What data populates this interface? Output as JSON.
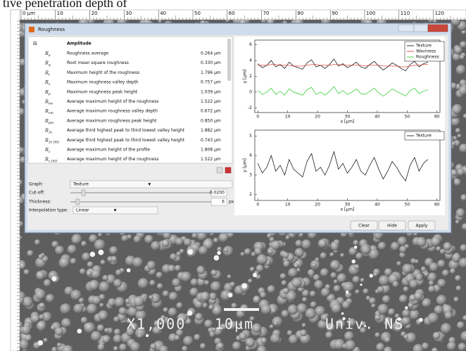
{
  "document_text": "tive penetration depth of",
  "ruler": {
    "labels": [
      "0 µm",
      "10",
      "20",
      "30",
      "40",
      "50",
      "60",
      "70",
      "80",
      "90",
      "100",
      "110",
      "120"
    ]
  },
  "window": {
    "title": "Roughness",
    "table": {
      "section": "Amplitude",
      "rows": [
        {
          "symbol": "R",
          "sub": "a",
          "name": "Roughness average",
          "value": "0.264 µm"
        },
        {
          "symbol": "R",
          "sub": "q",
          "name": "Root mean square roughness",
          "value": "0.330 µm"
        },
        {
          "symbol": "R",
          "sub": "t",
          "name": "Maximum height of the roughness",
          "value": "1.796 µm"
        },
        {
          "symbol": "R",
          "sub": "v",
          "name": "Maximum roughness valley depth",
          "value": "0.757 µm"
        },
        {
          "symbol": "R",
          "sub": "p",
          "name": "Maximum roughness peak height",
          "value": "1.039 µm"
        },
        {
          "symbol": "R",
          "sub": "tm",
          "name": "Average maximum height of the roughness",
          "value": "1.522 µm"
        },
        {
          "symbol": "R",
          "sub": "vm",
          "name": "Average maximum roughness valley depth",
          "value": "0.672 µm"
        },
        {
          "symbol": "R",
          "sub": "pm",
          "name": "Average maximum roughness peak height",
          "value": "0.850 µm"
        },
        {
          "symbol": "R",
          "sub": "3z",
          "name": "Average third highest peak to third lowest valley height",
          "value": "1.882 µm"
        },
        {
          "symbol": "R",
          "sub": "3z ISO",
          "name": "Average third highest peak to third lowest valley height",
          "value": "0.743 µm"
        },
        {
          "symbol": "R",
          "sub": "z",
          "name": "Average maximum height of the profile",
          "value": "1.808 µm"
        },
        {
          "symbol": "R",
          "sub": "z ISO",
          "name": "Average maximum height of the roughness",
          "value": "1.522 µm"
        }
      ]
    },
    "controls": [
      {
        "label": "Graph:",
        "value": "Texture"
      },
      {
        "label": "Cut-off:",
        "value": "0.0200"
      },
      {
        "label": "Thickness:",
        "value": "6",
        "unit": "px"
      },
      {
        "label": "Interpolation type:",
        "value": "Linear"
      }
    ],
    "buttons": [
      "Clear",
      "Hide",
      "Apply"
    ],
    "charts": [
      {
        "type": "line",
        "x_label": "x [µm]",
        "y_label": "y [µm]",
        "x": [
          0,
          1.5,
          3,
          4.5,
          6,
          7.5,
          9,
          10.5,
          12,
          13.5,
          15,
          16.5,
          18,
          19.5,
          21,
          22.5,
          24,
          25.5,
          27,
          28.5,
          30,
          31.5,
          33,
          34.5,
          36,
          37.5,
          39,
          40.5,
          42,
          43.5,
          45,
          46.5,
          48,
          49.5,
          51,
          52.5,
          54,
          55.5,
          57
        ],
        "xlim": [
          -1,
          61
        ],
        "xticks": [
          0,
          10,
          20,
          30,
          40,
          50,
          60
        ],
        "ylim": [
          -2.6,
          6.6
        ],
        "yticks": [
          -2,
          0,
          2,
          4,
          6
        ],
        "series": [
          {
            "name": "Texture",
            "color": "#000000",
            "values": [
              3.6,
              3.1,
              3.4,
              4.0,
              3.2,
              3.5,
              3.0,
              3.8,
              3.3,
              3.1,
              2.9,
              3.7,
              4.1,
              3.2,
              3.4,
              3.0,
              3.5,
              4.2,
              3.3,
              3.6,
              3.1,
              3.4,
              3.8,
              3.2,
              3.0,
              3.5,
              3.9,
              3.3,
              2.8,
              3.2,
              3.7,
              3.4,
              3.0,
              2.7,
              3.5,
              3.9,
              3.2,
              3.6,
              3.8
            ]
          },
          {
            "name": "Waviness",
            "color": "#e0281e",
            "values": [
              3.4,
              3.4,
              3.4,
              3.5,
              3.5,
              3.4,
              3.4,
              3.4,
              3.3,
              3.3,
              3.3,
              3.4,
              3.5,
              3.5,
              3.4,
              3.4,
              3.4,
              3.5,
              3.5,
              3.4,
              3.4,
              3.4,
              3.4,
              3.4,
              3.3,
              3.4,
              3.4,
              3.4,
              3.3,
              3.3,
              3.3,
              3.3,
              3.2,
              3.2,
              3.3,
              3.4,
              3.4,
              3.5,
              3.5
            ]
          },
          {
            "name": "Roughness",
            "color": "#1ec81e",
            "values": [
              0.2,
              -0.3,
              0.0,
              0.5,
              -0.3,
              0.1,
              -0.4,
              0.4,
              0.0,
              -0.2,
              -0.4,
              0.3,
              0.6,
              -0.3,
              0.0,
              -0.4,
              0.1,
              0.7,
              -0.2,
              0.2,
              -0.3,
              0.0,
              0.4,
              -0.2,
              -0.3,
              0.1,
              0.5,
              -0.1,
              -0.5,
              -0.1,
              0.4,
              0.1,
              -0.2,
              -0.5,
              0.2,
              0.5,
              -0.2,
              0.1,
              0.3
            ]
          }
        ]
      },
      {
        "type": "line",
        "x_label": "x [µm]",
        "y_label": "y [µm]",
        "x": [
          0,
          1.5,
          3,
          4.5,
          6,
          7.5,
          9,
          10.5,
          12,
          13.5,
          15,
          16.5,
          18,
          19.5,
          21,
          22.5,
          24,
          25.5,
          27,
          28.5,
          30,
          31.5,
          33,
          34.5,
          36,
          37.5,
          39,
          40.5,
          42,
          43.5,
          45,
          46.5,
          48,
          49.5,
          51,
          52.5,
          54,
          55.5,
          57
        ],
        "xlim": [
          -1,
          61
        ],
        "xticks": [
          0,
          10,
          20,
          30,
          40,
          50,
          60
        ],
        "ylim": [
          1.7,
          5.3
        ],
        "yticks": [
          2,
          3,
          4,
          5
        ],
        "series": [
          {
            "name": "Texture",
            "color": "#000000",
            "values": [
              3.6,
              3.1,
              3.4,
              4.0,
              3.2,
              3.5,
              3.0,
              3.8,
              3.3,
              3.1,
              2.9,
              3.7,
              4.1,
              3.2,
              3.4,
              3.0,
              3.5,
              4.2,
              3.3,
              3.6,
              3.1,
              3.4,
              3.8,
              3.2,
              3.0,
              3.5,
              3.9,
              3.3,
              2.8,
              3.2,
              3.7,
              3.4,
              3.0,
              2.7,
              3.5,
              3.9,
              3.2,
              3.6,
              3.8
            ]
          }
        ]
      }
    ]
  },
  "overlay": {
    "magnification": "X1,000",
    "scale": "10µm",
    "institution": "Univ. NS"
  }
}
